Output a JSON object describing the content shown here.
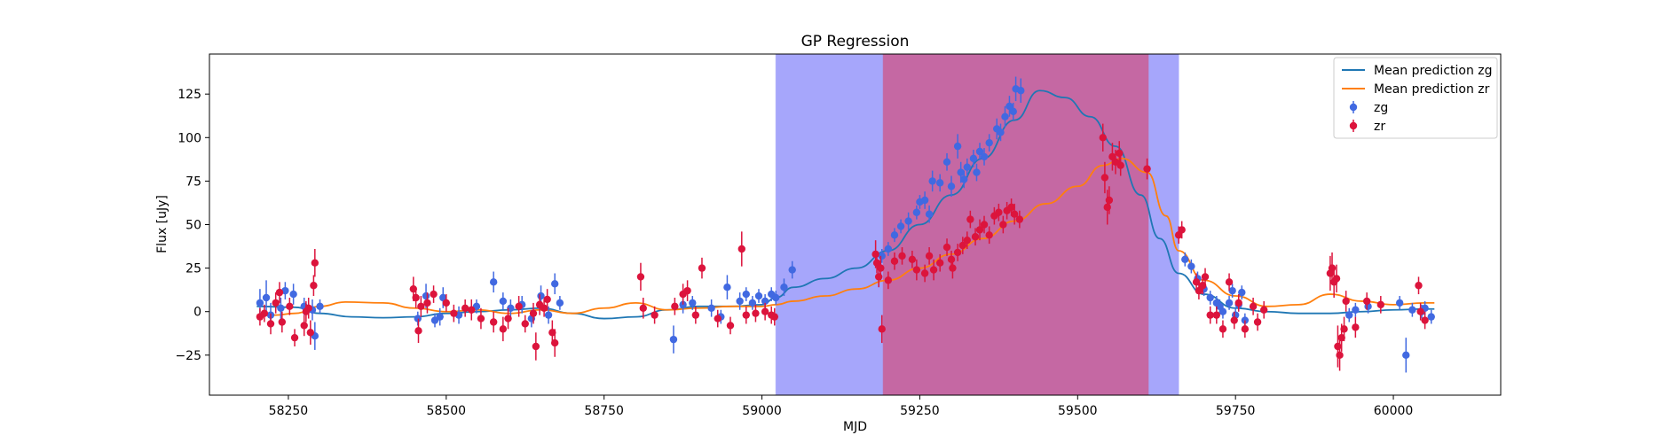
{
  "chart_data": {
    "type": "scatter",
    "title": "GP Regression",
    "xlabel": "MJD",
    "ylabel": "Flux [uJy]",
    "xlim": [
      58125,
      60170
    ],
    "ylim": [
      -48,
      148
    ],
    "xticks": [
      58250,
      58500,
      58750,
      59000,
      59250,
      59500,
      59750,
      60000
    ],
    "yticks": [
      -25,
      0,
      25,
      50,
      75,
      100,
      125
    ],
    "legend_position": "upper right",
    "shaded_regions": [
      {
        "x0": 59022,
        "x1": 59660,
        "color": "#a6a6fb"
      },
      {
        "x0": 59192,
        "x1": 59612,
        "color": "#c568a3"
      }
    ],
    "lines": [
      {
        "name": "Mean prediction zg",
        "color": "#1f77b4",
        "x": [
          58200,
          58260,
          58300,
          58350,
          58400,
          58450,
          58500,
          58550,
          58600,
          58650,
          58700,
          58750,
          58800,
          58850,
          58900,
          58950,
          59000,
          59022,
          59050,
          59100,
          59150,
          59200,
          59250,
          59300,
          59350,
          59400,
          59440,
          59480,
          59520,
          59560,
          59600,
          59630,
          59660,
          59700,
          59750,
          59800,
          59850,
          59900,
          59950,
          60000,
          60050,
          60065
        ],
        "y": [
          3,
          2.5,
          -1,
          -3,
          -3.5,
          -3,
          -1,
          0,
          1,
          2,
          -1,
          -4,
          -3,
          1,
          3,
          3,
          4,
          8,
          14,
          19,
          25,
          35,
          50,
          67,
          88,
          110,
          127,
          123,
          112,
          95,
          67,
          42,
          22,
          10,
          2,
          0,
          -1,
          -1,
          0,
          1,
          1.5,
          1.5
        ]
      },
      {
        "name": "Mean prediction zr",
        "color": "#ff7f0e",
        "x": [
          58200,
          58230,
          58260,
          58300,
          58340,
          58400,
          58450,
          58500,
          58550,
          58600,
          58650,
          58700,
          58750,
          58800,
          58850,
          58900,
          58950,
          59000,
          59022,
          59050,
          59100,
          59150,
          59200,
          59250,
          59300,
          59350,
          59400,
          59450,
          59500,
          59540,
          59570,
          59610,
          59640,
          59660,
          59700,
          59750,
          59800,
          59850,
          59900,
          59950,
          60000,
          60050,
          60065
        ],
        "y": [
          -2,
          -2,
          -1,
          3,
          5.5,
          5,
          2,
          0,
          1,
          -1,
          1,
          -1,
          2,
          5,
          1,
          2,
          3,
          3,
          4,
          6,
          9,
          13,
          18,
          25,
          33,
          42,
          52,
          62,
          72,
          84,
          88,
          80,
          55,
          35,
          18,
          9,
          3,
          4,
          10,
          6,
          4,
          5,
          5
        ]
      }
    ],
    "series": [
      {
        "name": "zg",
        "color": "#4169e1",
        "points": [
          [
            58205,
            5,
            8
          ],
          [
            58215,
            8,
            10
          ],
          [
            58222,
            -2,
            7
          ],
          [
            58238,
            2,
            6
          ],
          [
            58245,
            12,
            5
          ],
          [
            58258,
            10,
            6
          ],
          [
            58275,
            3,
            5
          ],
          [
            58288,
            1,
            6
          ],
          [
            58292,
            -14,
            8
          ],
          [
            58300,
            3,
            4
          ],
          [
            58455,
            -4,
            4
          ],
          [
            58468,
            9,
            7
          ],
          [
            58482,
            -5,
            4
          ],
          [
            58490,
            -3,
            5
          ],
          [
            58495,
            8,
            6
          ],
          [
            58520,
            -2,
            5
          ],
          [
            58548,
            3,
            4
          ],
          [
            58575,
            17,
            6
          ],
          [
            58590,
            6,
            5
          ],
          [
            58602,
            2,
            5
          ],
          [
            58620,
            4,
            5
          ],
          [
            58635,
            -4,
            5
          ],
          [
            58650,
            9,
            6
          ],
          [
            58662,
            -2,
            5
          ],
          [
            58672,
            16,
            6
          ],
          [
            58680,
            5,
            4
          ],
          [
            58860,
            -16,
            8
          ],
          [
            58875,
            4,
            5
          ],
          [
            58890,
            5,
            4
          ],
          [
            58920,
            2,
            5
          ],
          [
            58935,
            -3,
            4
          ],
          [
            58945,
            14,
            7
          ],
          [
            58965,
            6,
            5
          ],
          [
            58975,
            10,
            4
          ],
          [
            58985,
            5,
            4
          ],
          [
            58995,
            9,
            4
          ],
          [
            59005,
            6,
            4
          ],
          [
            59015,
            10,
            4
          ],
          [
            59022,
            8,
            4
          ],
          [
            59035,
            14,
            5
          ],
          [
            59048,
            24,
            5
          ],
          [
            59190,
            32,
            4
          ],
          [
            59200,
            36,
            4
          ],
          [
            59210,
            44,
            4
          ],
          [
            59220,
            49,
            4
          ],
          [
            59232,
            52,
            5
          ],
          [
            59245,
            57,
            4
          ],
          [
            59250,
            63,
            4
          ],
          [
            59258,
            64,
            5
          ],
          [
            59265,
            56,
            5
          ],
          [
            59270,
            75,
            6
          ],
          [
            59282,
            74,
            5
          ],
          [
            59293,
            86,
            5
          ],
          [
            59300,
            72,
            6
          ],
          [
            59310,
            95,
            7
          ],
          [
            59315,
            80,
            6
          ],
          [
            59320,
            76,
            5
          ],
          [
            59325,
            83,
            5
          ],
          [
            59335,
            88,
            5
          ],
          [
            59340,
            80,
            5
          ],
          [
            59345,
            92,
            5
          ],
          [
            59352,
            89,
            5
          ],
          [
            59360,
            97,
            5
          ],
          [
            59372,
            105,
            6
          ],
          [
            59378,
            103,
            5
          ],
          [
            59385,
            112,
            6
          ],
          [
            59392,
            118,
            6
          ],
          [
            59398,
            115,
            5
          ],
          [
            59402,
            128,
            7
          ],
          [
            59410,
            127,
            7
          ],
          [
            59670,
            30,
            4
          ],
          [
            59680,
            26,
            4
          ],
          [
            59690,
            19,
            4
          ],
          [
            59700,
            13,
            4
          ],
          [
            59710,
            8,
            4
          ],
          [
            59720,
            5,
            4
          ],
          [
            59725,
            3,
            4
          ],
          [
            59730,
            0,
            4
          ],
          [
            59740,
            5,
            4
          ],
          [
            59745,
            12,
            4
          ],
          [
            59750,
            -2,
            4
          ],
          [
            59755,
            4,
            4
          ],
          [
            59760,
            11,
            4
          ],
          [
            59765,
            -5,
            4
          ],
          [
            59930,
            -2,
            4
          ],
          [
            59940,
            1,
            4
          ],
          [
            59960,
            3,
            4
          ],
          [
            60010,
            5,
            4
          ],
          [
            60020,
            -25,
            10
          ],
          [
            60030,
            1,
            4
          ],
          [
            60045,
            0,
            4
          ],
          [
            60050,
            2,
            4
          ],
          [
            60060,
            -3,
            4
          ]
        ]
      },
      {
        "name": "zr",
        "color": "#dc143c",
        "points": [
          [
            58205,
            -3,
            5
          ],
          [
            58212,
            -1,
            5
          ],
          [
            58222,
            -7,
            6
          ],
          [
            58230,
            5,
            6
          ],
          [
            58236,
            11,
            6
          ],
          [
            58240,
            -6,
            6
          ],
          [
            58252,
            3,
            5
          ],
          [
            58260,
            -15,
            5
          ],
          [
            58275,
            -8,
            6
          ],
          [
            58278,
            0,
            6
          ],
          [
            58282,
            2,
            6
          ],
          [
            58285,
            -12,
            7
          ],
          [
            58290,
            15,
            6
          ],
          [
            58292,
            28,
            8
          ],
          [
            58448,
            13,
            7
          ],
          [
            58452,
            8,
            6
          ],
          [
            58456,
            -11,
            7
          ],
          [
            58460,
            3,
            6
          ],
          [
            58470,
            5,
            6
          ],
          [
            58480,
            10,
            5
          ],
          [
            58500,
            5,
            5
          ],
          [
            58512,
            -1,
            5
          ],
          [
            58530,
            2,
            5
          ],
          [
            58540,
            1,
            6
          ],
          [
            58555,
            -4,
            6
          ],
          [
            58575,
            -6,
            6
          ],
          [
            58590,
            -10,
            7
          ],
          [
            58598,
            -4,
            6
          ],
          [
            58615,
            3,
            6
          ],
          [
            58625,
            -7,
            5
          ],
          [
            58638,
            -1,
            6
          ],
          [
            58642,
            -20,
            8
          ],
          [
            58648,
            4,
            6
          ],
          [
            58655,
            2,
            5
          ],
          [
            58660,
            7,
            6
          ],
          [
            58668,
            -12,
            7
          ],
          [
            58672,
            -18,
            8
          ],
          [
            58808,
            20,
            8
          ],
          [
            58812,
            2,
            6
          ],
          [
            58830,
            -2,
            5
          ],
          [
            58862,
            3,
            5
          ],
          [
            58875,
            10,
            6
          ],
          [
            58882,
            12,
            6
          ],
          [
            58895,
            -2,
            5
          ],
          [
            58905,
            25,
            6
          ],
          [
            58930,
            -4,
            5
          ],
          [
            58950,
            -8,
            5
          ],
          [
            58968,
            36,
            10
          ],
          [
            58975,
            -2,
            5
          ],
          [
            58990,
            -1,
            5
          ],
          [
            59005,
            0,
            5
          ],
          [
            59015,
            -2,
            5
          ],
          [
            59020,
            -3,
            5
          ],
          [
            59180,
            33,
            8
          ],
          [
            59182,
            28,
            6
          ],
          [
            59185,
            20,
            6
          ],
          [
            59188,
            25,
            7
          ],
          [
            59190,
            -10,
            8
          ],
          [
            59200,
            18,
            5
          ],
          [
            59210,
            29,
            5
          ],
          [
            59222,
            32,
            5
          ],
          [
            59238,
            30,
            5
          ],
          [
            59245,
            24,
            6
          ],
          [
            59258,
            22,
            5
          ],
          [
            59265,
            32,
            5
          ],
          [
            59272,
            24,
            6
          ],
          [
            59282,
            28,
            5
          ],
          [
            59293,
            37,
            5
          ],
          [
            59300,
            30,
            5
          ],
          [
            59302,
            25,
            6
          ],
          [
            59310,
            34,
            5
          ],
          [
            59318,
            38,
            5
          ],
          [
            59325,
            41,
            5
          ],
          [
            59330,
            53,
            5
          ],
          [
            59338,
            43,
            5
          ],
          [
            59345,
            47,
            6
          ],
          [
            59352,
            50,
            5
          ],
          [
            59360,
            44,
            5
          ],
          [
            59368,
            55,
            5
          ],
          [
            59375,
            57,
            5
          ],
          [
            59382,
            50,
            5
          ],
          [
            59388,
            58,
            5
          ],
          [
            59395,
            60,
            5
          ],
          [
            59400,
            56,
            6
          ],
          [
            59408,
            53,
            5
          ],
          [
            59540,
            100,
            8
          ],
          [
            59543,
            77,
            9
          ],
          [
            59547,
            60,
            10
          ],
          [
            59550,
            64,
            8
          ],
          [
            59555,
            89,
            8
          ],
          [
            59560,
            86,
            7
          ],
          [
            59566,
            91,
            7
          ],
          [
            59568,
            84,
            6
          ],
          [
            59610,
            82,
            6
          ],
          [
            59660,
            44,
            5
          ],
          [
            59665,
            47,
            5
          ],
          [
            59688,
            17,
            5
          ],
          [
            59692,
            12,
            5
          ],
          [
            59698,
            15,
            5
          ],
          [
            59702,
            20,
            5
          ],
          [
            59710,
            -2,
            5
          ],
          [
            59720,
            -2,
            5
          ],
          [
            59730,
            -10,
            5
          ],
          [
            59740,
            17,
            5
          ],
          [
            59748,
            -5,
            5
          ],
          [
            59755,
            5,
            5
          ],
          [
            59765,
            -10,
            5
          ],
          [
            59778,
            3,
            5
          ],
          [
            59785,
            -6,
            5
          ],
          [
            59795,
            1,
            5
          ],
          [
            59900,
            22,
            10
          ],
          [
            59903,
            25,
            9
          ],
          [
            59906,
            17,
            9
          ],
          [
            59910,
            19,
            8
          ],
          [
            59912,
            -20,
            12
          ],
          [
            59915,
            -25,
            9
          ],
          [
            59918,
            -15,
            8
          ],
          [
            59922,
            -10,
            7
          ],
          [
            59925,
            6,
            6
          ],
          [
            59940,
            -9,
            6
          ],
          [
            59958,
            6,
            5
          ],
          [
            59980,
            4,
            5
          ],
          [
            60040,
            15,
            5
          ],
          [
            60043,
            0,
            5
          ],
          [
            60050,
            -5,
            5
          ]
        ]
      }
    ]
  }
}
